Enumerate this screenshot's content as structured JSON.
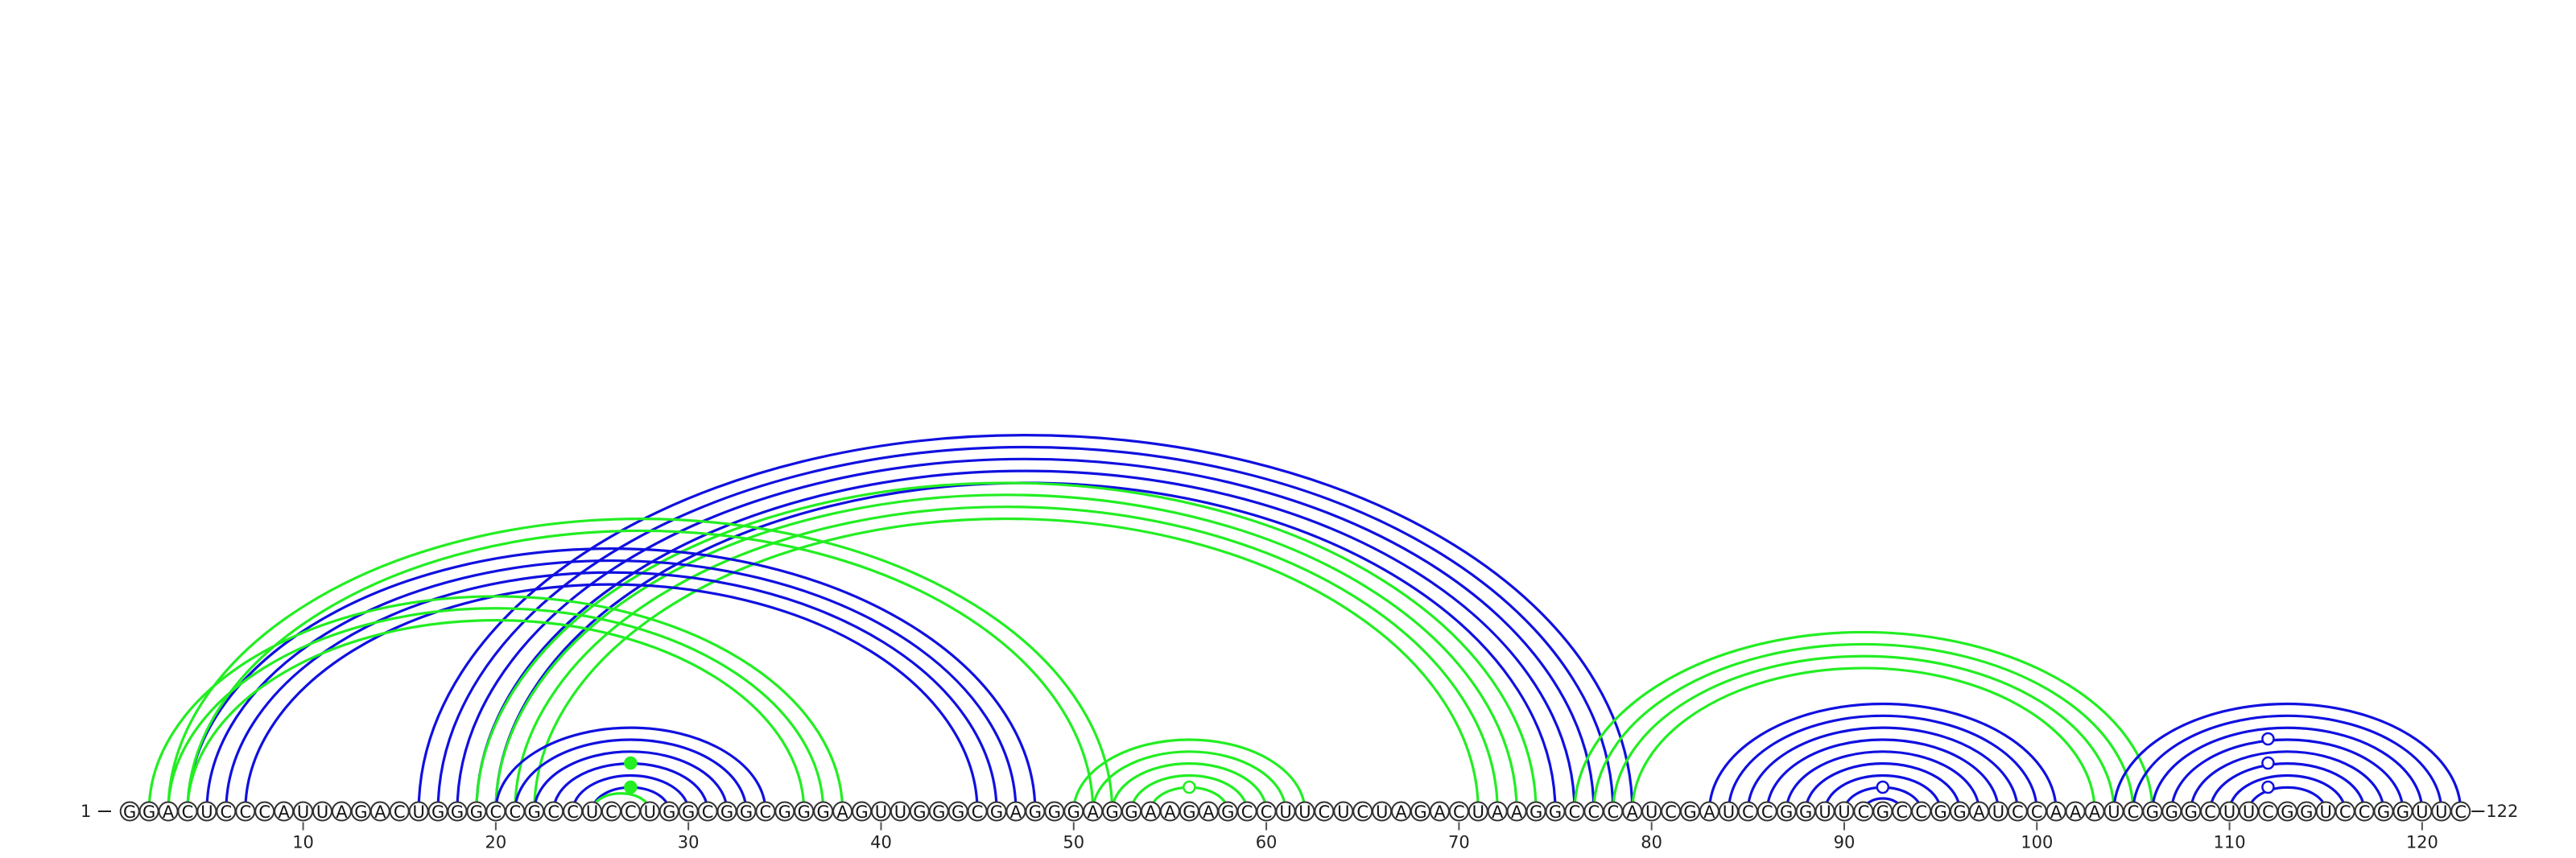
{
  "diagram": {
    "sequence": "GGACUCCCAUUAGACUGGGCCGCCUCCUGGCGGCGGGAGUUGGGCGAGGGAGGAAGAGCCUUCUCUAGACUAAGGCCCAUCGAUCCGGUUCGCCGGAUCCAAAUCGGGCUUCGGUCCGGUUC",
    "start_label": "1",
    "end_label": "122",
    "tick_positions": [
      10,
      20,
      30,
      40,
      50,
      60,
      70,
      80,
      90,
      100,
      110,
      120
    ],
    "colors": {
      "blue": "#1010e0",
      "green": "#22ee22"
    },
    "arc_groups": [
      {
        "color": "blue",
        "pairs": [
          [
            16,
            79
          ],
          [
            17,
            78
          ],
          [
            18,
            77
          ],
          [
            19,
            76
          ],
          [
            20,
            75
          ]
        ]
      },
      {
        "color": "green",
        "pairs": [
          [
            19,
            74
          ],
          [
            20,
            73
          ],
          [
            21,
            72
          ],
          [
            22,
            71
          ]
        ]
      },
      {
        "color": "blue",
        "pairs": [
          [
            4,
            48
          ],
          [
            5,
            47
          ],
          [
            6,
            46
          ],
          [
            7,
            45
          ]
        ]
      },
      {
        "color": "green",
        "pairs": [
          [
            2,
            38
          ],
          [
            3,
            37
          ],
          [
            4,
            36
          ]
        ]
      },
      {
        "color": "green",
        "pairs": [
          [
            3,
            52
          ],
          [
            4,
            51
          ]
        ]
      },
      {
        "color": "blue",
        "pairs": [
          [
            20,
            34
          ],
          [
            21,
            33
          ],
          [
            22,
            32
          ],
          [
            23,
            31
          ],
          [
            24,
            30
          ],
          [
            25,
            29
          ]
        ]
      },
      {
        "color": "green",
        "pairs": [
          [
            25,
            28
          ]
        ]
      },
      {
        "color": "green",
        "pairs": [
          [
            50,
            62
          ],
          [
            51,
            61
          ],
          [
            52,
            60
          ],
          [
            53,
            59
          ],
          [
            54,
            58
          ]
        ]
      },
      {
        "color": "green",
        "pairs": [
          [
            76,
            106
          ],
          [
            77,
            105
          ],
          [
            78,
            104
          ],
          [
            79,
            103
          ]
        ]
      },
      {
        "color": "blue",
        "pairs": [
          [
            83,
            101
          ],
          [
            84,
            100
          ],
          [
            85,
            99
          ],
          [
            86,
            98
          ],
          [
            87,
            97
          ],
          [
            88,
            96
          ],
          [
            89,
            95
          ],
          [
            90,
            94
          ],
          [
            91,
            93
          ]
        ]
      },
      {
        "color": "blue",
        "pairs": [
          [
            104,
            122
          ],
          [
            105,
            121
          ],
          [
            106,
            120
          ],
          [
            107,
            119
          ],
          [
            108,
            118
          ],
          [
            109,
            117
          ],
          [
            110,
            116
          ],
          [
            111,
            115
          ]
        ]
      }
    ],
    "markers": [
      {
        "pos": 27,
        "kind": "filled",
        "color": "green"
      },
      {
        "pos": 27,
        "kind": "filled",
        "color": "green"
      },
      {
        "pos": 56,
        "kind": "open",
        "color": "green"
      },
      {
        "pos": 92,
        "kind": "open",
        "color": "blue"
      },
      {
        "pos": 112,
        "kind": "open",
        "color": "blue"
      },
      {
        "pos": 112,
        "kind": "open",
        "color": "blue"
      },
      {
        "pos": 112,
        "kind": "open",
        "color": "blue"
      }
    ]
  }
}
